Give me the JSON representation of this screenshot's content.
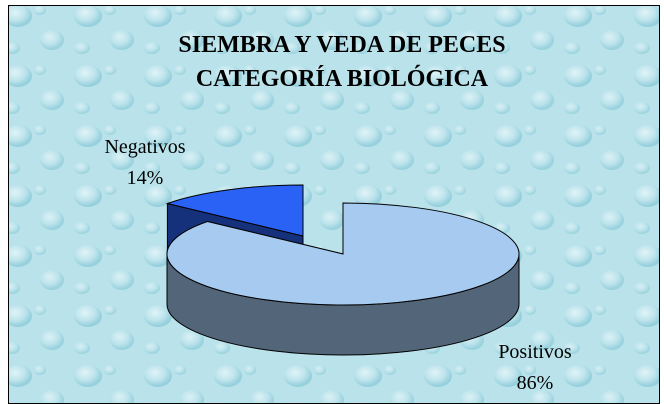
{
  "chart_data": {
    "type": "pie3d",
    "title": [
      "SIEMBRA Y VEDA DE PECES",
      "CATEGORÍA BIOLÓGICA"
    ],
    "categories": [
      "Negativos",
      "Positivos"
    ],
    "values": [
      14,
      86
    ],
    "value_labels": [
      "14%",
      "86%"
    ],
    "colors": [
      "#2a62f5",
      "#a6caf0"
    ]
  }
}
